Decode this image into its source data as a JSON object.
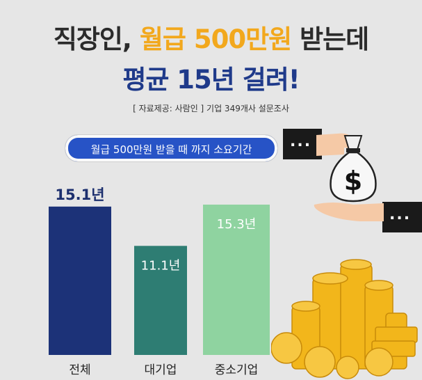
{
  "title_line1_a": "직장인, ",
  "title_line1_highlight": "월급 500만원",
  "title_line1_b": " 받는데",
  "title_line2": "평균 15년 걸려!",
  "source": "[ 자료제공: 사람인 ] 기업 349개사 설문조사",
  "pill_label": "월급 500만원 받을 때 까지 소요기간",
  "icon_names": [
    "money-bag-icon",
    "hand-icon",
    "coin-pile-icon"
  ],
  "chart_data": {
    "type": "bar",
    "title": "월급 500만원 받을 때 까지 소요기간",
    "categories": [
      "전체",
      "대기업",
      "중소기업"
    ],
    "values": [
      15.1,
      11.1,
      15.3
    ],
    "value_labels": [
      "15.1년",
      "11.1년",
      "15.3년"
    ],
    "colors": [
      "#1c3278",
      "#2e7d73",
      "#8fd3a0"
    ],
    "label_colors": [
      "#1c2f6e",
      "#ffffff",
      "#ffffff"
    ],
    "ylim": [
      0,
      16
    ],
    "grid": false
  }
}
